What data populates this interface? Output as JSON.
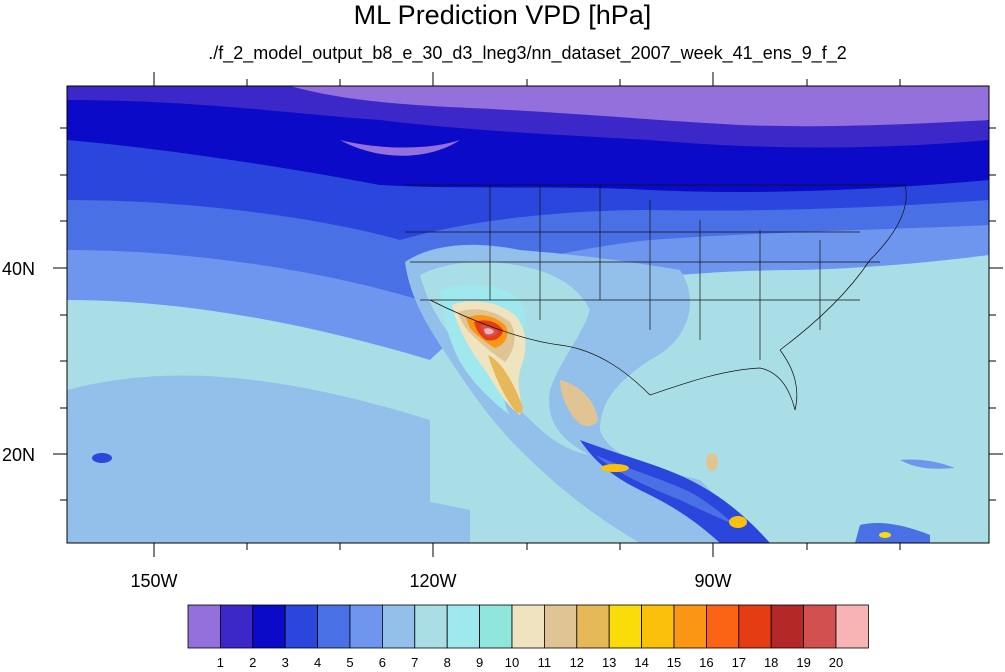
{
  "title": "ML Prediction VPD [hPa]",
  "subtitle": "./f_2_model_output_b8_e_30_d3_lneg3/nn_dataset_2007_week_41_ens_9_f_2",
  "lat_labels": [
    "40N",
    "20N"
  ],
  "lon_labels": [
    "150W",
    "120W",
    "90W"
  ],
  "colorbar": {
    "labels": [
      "1",
      "2",
      "3",
      "4",
      "5",
      "6",
      "7",
      "8",
      "9",
      "10",
      "11",
      "12",
      "13",
      "14",
      "15",
      "16",
      "17",
      "18",
      "19",
      "20"
    ],
    "colors": [
      "#9370db",
      "#3c28c8",
      "#0a0ac8",
      "#2a46dc",
      "#4a70e6",
      "#6e96ee",
      "#92c0ea",
      "#aadee6",
      "#9ee8ee",
      "#90e6dc",
      "#f0e4c0",
      "#e0c494",
      "#e6b858",
      "#fadc0a",
      "#fac00a",
      "#fa9614",
      "#fa6414",
      "#e63c14",
      "#b42828",
      "#d25050",
      "#f8b4b4"
    ]
  }
}
